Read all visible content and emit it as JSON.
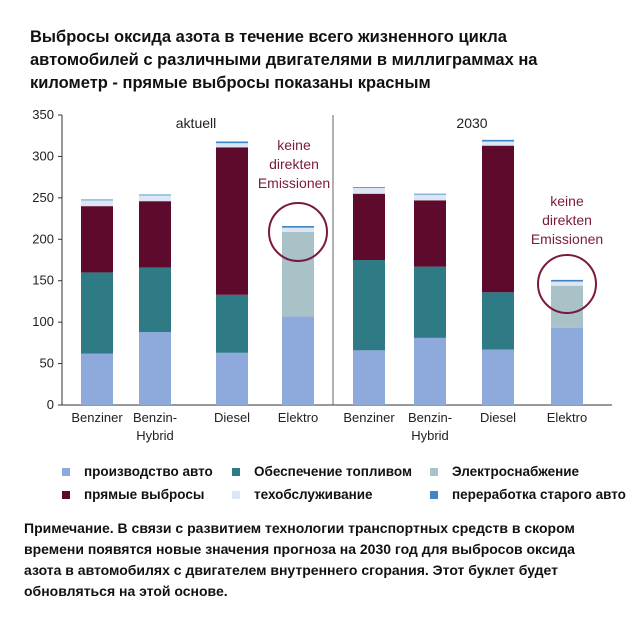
{
  "title": "Выбросы оксида азота в течение всего жизненного цикла автомобилей с различными двигателями в миллиграммах на километр - прямые выбросы показаны красным",
  "footnote": "Примечание. В связи с развитием технологии транспортных средств в скором времени появятся новые значения прогноза на 2030 год для выбросов оксида азота в автомобилях с двигателем внутреннего сгорания. Этот буклет будет обновляться на этой основе.",
  "chart_data": {
    "type": "bar",
    "stacked": true,
    "ylim": [
      0,
      350
    ],
    "yticks": [
      0,
      50,
      100,
      150,
      200,
      250,
      300,
      350
    ],
    "groups": [
      {
        "label": "aktuell",
        "categories": [
          "Benziner",
          "Benzin-Hybrid",
          "Diesel",
          "Elektro"
        ]
      },
      {
        "label": "2030",
        "categories": [
          "Benziner",
          "Benzin-Hybrid",
          "Diesel",
          "Elektro"
        ]
      }
    ],
    "category_labels": [
      [
        "Benziner"
      ],
      [
        "Benzin-",
        "Hybrid"
      ],
      [
        "Diesel"
      ],
      [
        "Elektro"
      ],
      [
        "Benziner"
      ],
      [
        "Benzin-",
        "Hybrid"
      ],
      [
        "Diesel"
      ],
      [
        "Elektro"
      ]
    ],
    "series": [
      {
        "name": "производство авто",
        "color": "#8ea9db",
        "values": [
          62,
          88,
          63,
          107,
          66,
          81,
          67,
          93
        ]
      },
      {
        "name": "Обеспечение топливом",
        "color": "#2e7b86",
        "values": [
          98,
          78,
          70,
          0,
          109,
          86,
          69,
          0
        ]
      },
      {
        "name": "Электроснабжение",
        "color": "#a8c2c8",
        "values": [
          0,
          0,
          0,
          102,
          0,
          0,
          0,
          51
        ]
      },
      {
        "name": "прямые выбросы",
        "color": "#5e0a2c",
        "values": [
          80,
          80,
          178,
          0,
          80,
          80,
          177,
          0
        ]
      },
      {
        "name": "техобслуживание",
        "color": "#dce6f4",
        "values": [
          7,
          7,
          5,
          5,
          7,
          7,
          5,
          5
        ]
      },
      {
        "name": "переработка старого авто",
        "color": "#3f86c6",
        "values": [
          1,
          1,
          2,
          2,
          1,
          1,
          2,
          2
        ]
      }
    ],
    "annotations": [
      {
        "lines": [
          "keine",
          "direkten",
          "Emissionen"
        ],
        "bar_index": 3
      },
      {
        "lines": [
          "keine",
          "direkten",
          "Emissionen"
        ],
        "bar_index": 7
      }
    ]
  }
}
